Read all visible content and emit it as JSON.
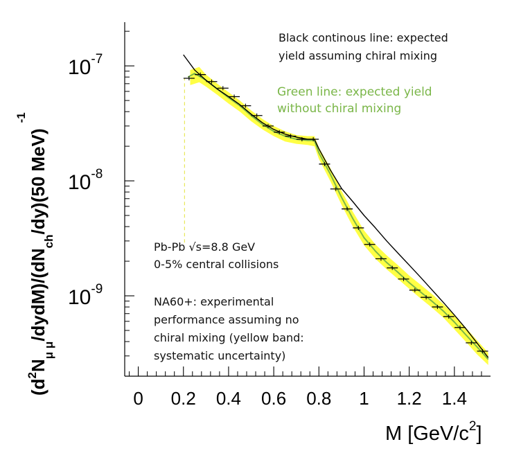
{
  "chart_data": {
    "type": "line",
    "xlabel": "M [GeV/c",
    "xlabel_sup": "2",
    "xlabel_close": "]",
    "ylabel_parts": [
      "(d",
      "2",
      "N",
      "μ μ",
      "/dydM)/(dN",
      "ch",
      "/dy)(50 MeV)",
      "-1"
    ],
    "xlim": [
      -0.06,
      1.56
    ],
    "ylim": [
      2e-10,
      2.4e-07
    ],
    "yscale": "log",
    "x_ticks": [
      {
        "value": 0,
        "label": "0"
      },
      {
        "value": 0.2,
        "label": "0.2"
      },
      {
        "value": 0.4,
        "label": "0.4"
      },
      {
        "value": 0.6,
        "label": "0.6"
      },
      {
        "value": 0.8,
        "label": "0.8"
      },
      {
        "value": 1.0,
        "label": "1"
      },
      {
        "value": 1.2,
        "label": "1.2"
      },
      {
        "value": 1.4,
        "label": "1.4"
      }
    ],
    "y_ticks": [
      {
        "value": 1e-07,
        "base": "10",
        "exp": "-7"
      },
      {
        "value": 1e-08,
        "base": "10",
        "exp": "-8"
      },
      {
        "value": 1e-09,
        "base": "10",
        "exp": "-9"
      }
    ],
    "series": [
      {
        "color": "#000000",
        "x": [
          0.2,
          0.25,
          0.3,
          0.35,
          0.4,
          0.45,
          0.5,
          0.55,
          0.6,
          0.65,
          0.7,
          0.75,
          0.78,
          0.8,
          0.85,
          0.9,
          0.95,
          1.0,
          1.05,
          1.1,
          1.15,
          1.2,
          1.25,
          1.3,
          1.35,
          1.4,
          1.45,
          1.5,
          1.55
        ],
        "y": [
          1.25e-07,
          9.2e-08,
          7.5e-08,
          6.3e-08,
          5.4e-08,
          4.6e-08,
          3.8e-08,
          3.2e-08,
          2.8e-08,
          2.55e-08,
          2.4e-08,
          2.3e-08,
          2.3e-08,
          1.9e-08,
          1.25e-08,
          8.6e-09,
          6.6e-09,
          5e-09,
          3.9e-09,
          3e-09,
          2.35e-09,
          1.85e-09,
          1.45e-09,
          1.13e-09,
          8.8e-10,
          6.8e-10,
          5.2e-10,
          3.9e-10,
          2.9e-10
        ]
      },
      {
        "color": "#7ab648",
        "x": [
          0.22,
          0.25,
          0.3,
          0.35,
          0.4,
          0.45,
          0.5,
          0.55,
          0.6,
          0.65,
          0.7,
          0.75,
          0.78,
          0.8,
          0.85,
          0.9,
          0.95,
          1.0,
          1.05,
          1.1,
          1.15,
          1.2,
          1.25,
          1.3,
          1.35,
          1.4,
          1.45,
          1.5,
          1.55
        ],
        "y": [
          8e-08,
          8.6e-08,
          7.5e-08,
          6.3e-08,
          5.3e-08,
          4.5e-08,
          3.7e-08,
          3.1e-08,
          2.7e-08,
          2.45e-08,
          2.3e-08,
          2.25e-08,
          2.25e-08,
          1.75e-08,
          1.15e-08,
          7.2e-09,
          4.7e-09,
          3.2e-09,
          2.45e-09,
          1.95e-09,
          1.6e-09,
          1.3e-09,
          1.08e-09,
          9e-10,
          7.4e-10,
          5.9e-10,
          4.6e-10,
          3.6e-10,
          2.8e-10
        ]
      }
    ],
    "band": {
      "color": "#ffff3b",
      "x": [
        0.23,
        0.27,
        0.3,
        0.35,
        0.4,
        0.45,
        0.5,
        0.55,
        0.6,
        0.65,
        0.7,
        0.75,
        0.78,
        0.8,
        0.85,
        0.9,
        0.95,
        1.0,
        1.05,
        1.1,
        1.15,
        1.2,
        1.25,
        1.3,
        1.35,
        1.4,
        1.45,
        1.5,
        1.55
      ],
      "low": [
        6.8e-08,
        7.2e-08,
        6.6e-08,
        5.6e-08,
        4.7e-08,
        4e-08,
        3.3e-08,
        2.8e-08,
        2.45e-08,
        2.2e-08,
        2.1e-08,
        2.05e-08,
        2e-08,
        1.55e-08,
        1e-08,
        6.2e-09,
        4e-09,
        2.75e-09,
        2.1e-09,
        1.7e-09,
        1.4e-09,
        1.15e-09,
        9.5e-10,
        7.9e-10,
        6.5e-10,
        5.1e-10,
        4e-10,
        3.1e-10,
        2.5e-10
      ],
      "high": [
        9.2e-08,
        9.8e-08,
        8.4e-08,
        7e-08,
        5.9e-08,
        5e-08,
        4.1e-08,
        3.45e-08,
        3e-08,
        2.7e-08,
        2.5e-08,
        2.45e-08,
        2.45e-08,
        1.95e-08,
        1.3e-08,
        8.2e-09,
        5.4e-09,
        3.7e-09,
        2.8e-09,
        2.25e-09,
        1.85e-09,
        1.5e-09,
        1.25e-09,
        1.04e-09,
        8.5e-10,
        6.8e-10,
        5.3e-10,
        4.1e-10,
        3.2e-10
      ]
    },
    "points": {
      "x": [
        0.225,
        0.275,
        0.325,
        0.375,
        0.425,
        0.475,
        0.525,
        0.575,
        0.625,
        0.675,
        0.725,
        0.775,
        0.825,
        0.875,
        0.925,
        0.975,
        1.025,
        1.075,
        1.125,
        1.175,
        1.225,
        1.275,
        1.325,
        1.375,
        1.425,
        1.475,
        1.525
      ],
      "y": [
        7.8e-08,
        8.4e-08,
        7.3e-08,
        6.4e-08,
        5.4e-08,
        4.5e-08,
        3.7e-08,
        3e-08,
        2.65e-08,
        2.45e-08,
        2.3e-08,
        2.3e-08,
        1.4e-08,
        8.5e-09,
        5.7e-09,
        3.9e-09,
        2.8e-09,
        2.1e-09,
        1.75e-09,
        1.4e-09,
        1.12e-09,
        9.7e-10,
        8e-10,
        6.6e-10,
        5.3e-10,
        3.9e-10,
        3.3e-10
      ]
    },
    "lower_edge_marker_x": 0.205,
    "lower_edge_marker_y": [
      2.9e-09,
      7.8e-08
    ],
    "annotations": {
      "black_line_1": "Black continous line: expected",
      "black_line_2": "yield assuming chiral mixing",
      "green_line_1": "Green line: expected yield",
      "green_line_2": "without chiral mixing",
      "collision_1": "Pb-Pb √s=8.8 GeV",
      "collision_2": "0-5% central collisions",
      "na60_1": "NA60+: experimental",
      "na60_2": "performance assuming no",
      "na60_3": "chiral mixing (yellow band:",
      "na60_4": "systematic uncertainty)"
    },
    "annotation_colors": {
      "black": "#111111",
      "green": "#7ab648"
    }
  }
}
